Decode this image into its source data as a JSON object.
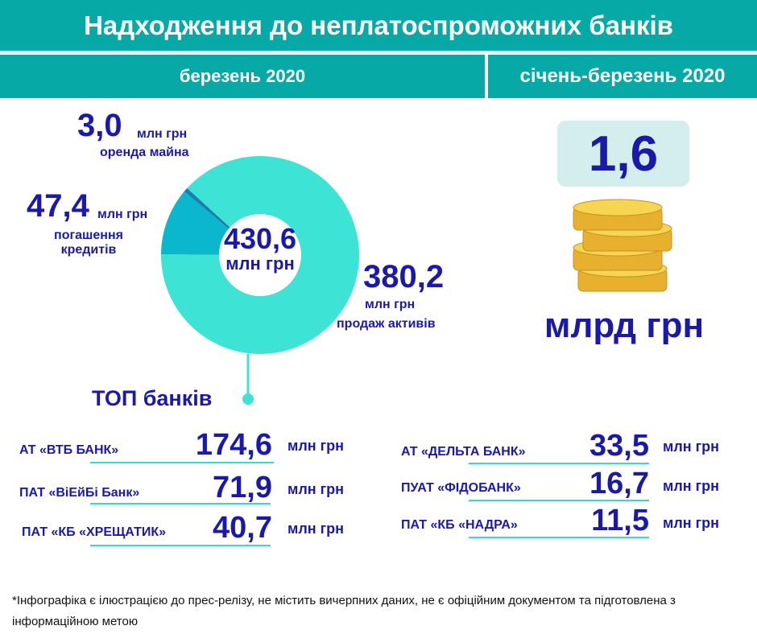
{
  "header": {
    "title": "Надходження до неплатоспроможних банків",
    "period_month": "березень 2020",
    "period_quarter": "січень-березень 2020"
  },
  "colors": {
    "header_bg": "#06a9a6",
    "text_navy": "#1b1aa8",
    "ring_main": "#3de4d5",
    "ring_mid": "#0bb7cc",
    "ring_small": "#1a7fb0",
    "quarter_box": "#d3eeed",
    "coin": "#f3c93a",
    "coin_dark": "#e0a82a"
  },
  "chart_data": {
    "type": "pie",
    "categories": [
      "продаж активів",
      "погашення кредитів",
      "оренда майна"
    ],
    "values": [
      380.2,
      47.4,
      3.0
    ],
    "unit": "млн грн",
    "total": "430,6",
    "total_unit": "млн грн"
  },
  "slices": {
    "sales": {
      "value": "380,2",
      "unit": "млн грн",
      "label": "продаж активів"
    },
    "loans": {
      "value": "47,4",
      "unit": "млн грн",
      "label": "погашення кредитів"
    },
    "rent": {
      "value": "3,0",
      "unit": "млн грн",
      "label": "оренда майна"
    }
  },
  "quarter_total": {
    "value": "1,6",
    "unit": "млрд грн",
    "icon": "coins-icon"
  },
  "top_banks": {
    "title": "ТОП банків",
    "left": [
      {
        "name": "АТ «ВТБ БАНК»",
        "value": "174,6",
        "unit": "млн грн"
      },
      {
        "name": "ПАТ «ВіЕйБі Банк»",
        "value": "71,9",
        "unit": "млн грн"
      },
      {
        "name": "ПАТ «КБ «ХРЕЩАТИК»",
        "value": "40,7",
        "unit": "млн грн"
      }
    ],
    "right": [
      {
        "name": "АТ «ДЕЛЬТА БАНК»",
        "value": "33,5",
        "unit": "млн грн"
      },
      {
        "name": "ПУАТ «ФІДОБАНК»",
        "value": "16,7",
        "unit": "млн грн"
      },
      {
        "name": "ПАТ «КБ «НАДРА»",
        "value": "11,5",
        "unit": "млн грн"
      }
    ]
  },
  "footnote": "*Інфографіка є ілюстрацією до прес-релізу, не містить вичерпних даних, не є офіційним документом та підготовлена з інформаційною метою"
}
